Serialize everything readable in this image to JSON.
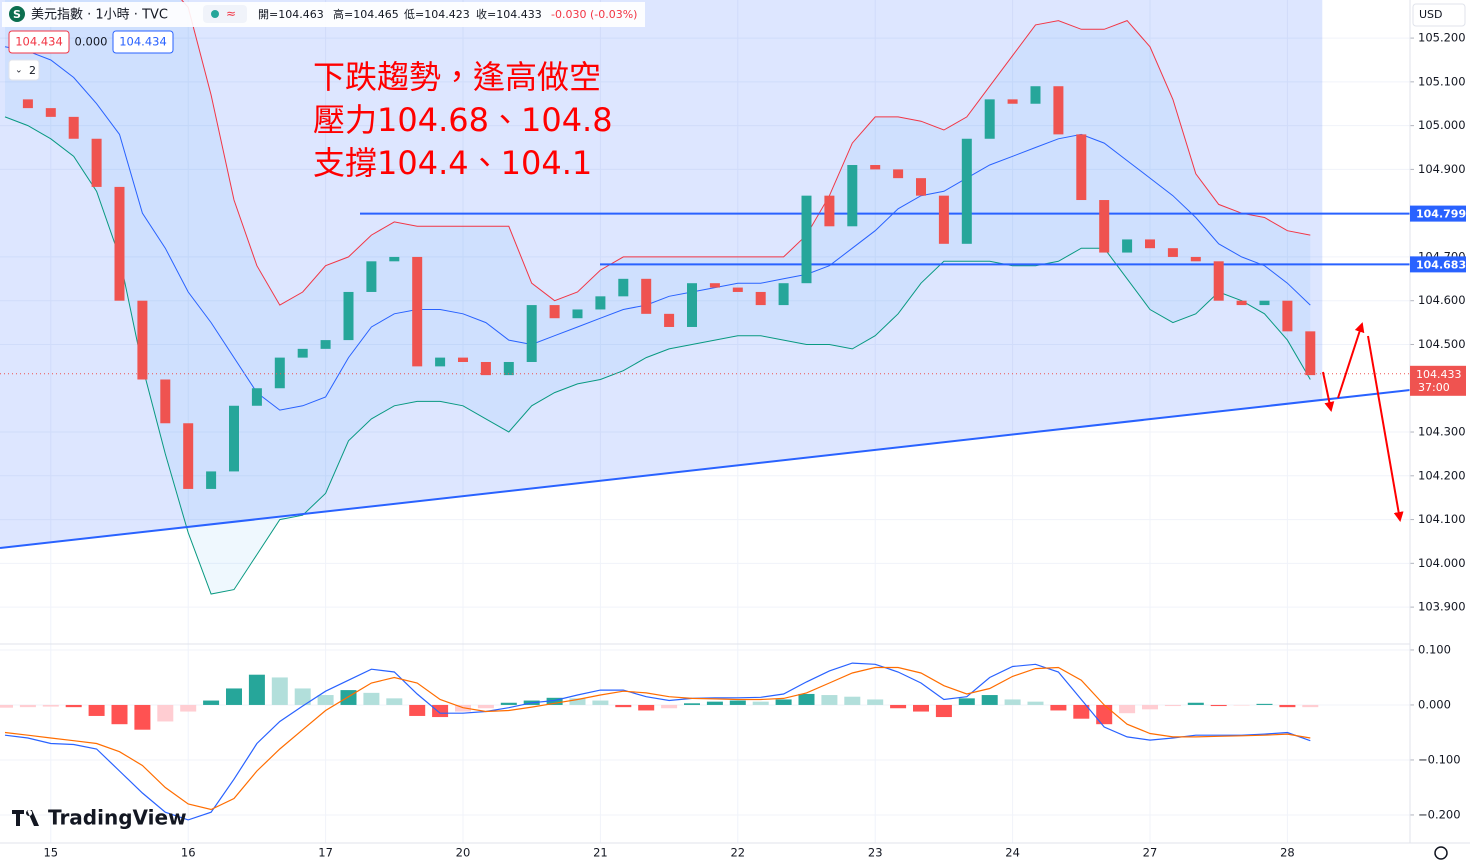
{
  "header": {
    "symbol": "美元指數 · 1小時 · TVC",
    "ohlc": [
      "開=104.463",
      "高=104.465",
      "低=104.423",
      "收=104.433"
    ],
    "change": "-0.030 (-0.03%)",
    "bid": "104.434",
    "spread": "0.000",
    "ask": "104.434",
    "indicator_count": 2,
    "currency": "USD",
    "brand": "TradingView"
  },
  "chart_data": [
    {
      "type": "candlestick",
      "annotations": [
        "下跌趨勢，逢高做空",
        "壓力104.68、104.8",
        "支撐104.4、104.1"
      ],
      "categories": [
        null,
        null,
        "15",
        null,
        null,
        null,
        null,
        null,
        "16",
        null,
        null,
        null,
        null,
        null,
        "17",
        null,
        null,
        null,
        null,
        null,
        "20",
        null,
        null,
        null,
        null,
        null,
        "21",
        null,
        null,
        null,
        null,
        null,
        "22",
        null,
        null,
        null,
        null,
        null,
        "23",
        null,
        null,
        null,
        null,
        null,
        "24",
        null,
        null,
        null,
        null,
        null,
        "27",
        null,
        null,
        null,
        null,
        null,
        "28",
        null
      ],
      "values": [
        105.06,
        105.04,
        105.02,
        104.97,
        104.86,
        104.6,
        104.42,
        104.32,
        104.17,
        104.21,
        104.36,
        104.4,
        104.47,
        104.49,
        104.51,
        104.62,
        104.69,
        104.7,
        104.45,
        104.47,
        104.46,
        104.43,
        104.46,
        104.59,
        104.56,
        104.58,
        104.61,
        104.65,
        104.57,
        104.54,
        104.64,
        104.63,
        104.62,
        104.59,
        104.64,
        104.84,
        104.77,
        104.91,
        104.9,
        104.88,
        104.84,
        104.73,
        104.97,
        105.06,
        105.05,
        105.09,
        104.98,
        104.83,
        104.71,
        104.74,
        104.72,
        104.7,
        104.69,
        104.6,
        104.59,
        104.6,
        104.53,
        104.43
      ],
      "colors": {
        "up": "#26a69a",
        "down": "#ef5350"
      },
      "bollinger": {
        "upper": [
          105.35,
          105.4,
          105.45,
          105.5,
          105.5,
          105.48,
          105.42,
          105.33,
          105.27,
          105.07,
          104.83,
          104.68,
          104.59,
          104.62,
          104.68,
          104.7,
          104.75,
          104.78,
          104.77,
          104.77,
          104.77,
          104.77,
          104.77,
          104.64,
          104.6,
          104.62,
          104.67,
          104.7,
          104.7,
          104.7,
          104.7,
          104.7,
          104.7,
          104.7,
          104.7,
          104.75,
          104.84,
          104.96,
          105.02,
          105.02,
          105.01,
          104.99,
          105.02,
          105.09,
          105.16,
          105.23,
          105.24,
          105.22,
          105.22,
          105.24,
          105.18,
          105.06,
          104.89,
          104.82,
          104.8,
          104.79,
          104.76,
          104.75
        ],
        "middle": [
          105.18,
          105.17,
          105.15,
          105.11,
          105.05,
          104.98,
          104.8,
          104.72,
          104.62,
          104.55,
          104.47,
          104.39,
          104.35,
          104.36,
          104.38,
          104.47,
          104.54,
          104.57,
          104.58,
          104.58,
          104.57,
          104.55,
          104.51,
          104.5,
          104.52,
          104.54,
          104.56,
          104.58,
          104.59,
          104.61,
          104.62,
          104.63,
          104.64,
          104.64,
          104.65,
          104.66,
          104.68,
          104.72,
          104.76,
          104.81,
          104.84,
          104.85,
          104.88,
          104.91,
          104.93,
          104.95,
          104.97,
          104.98,
          104.96,
          104.92,
          104.88,
          104.84,
          104.79,
          104.73,
          104.7,
          104.68,
          104.64,
          104.59
        ],
        "lower": [
          105.02,
          105.0,
          104.97,
          104.93,
          104.85,
          104.7,
          104.45,
          104.25,
          104.07,
          103.93,
          103.94,
          104.02,
          104.1,
          104.11,
          104.16,
          104.28,
          104.33,
          104.36,
          104.37,
          104.37,
          104.36,
          104.33,
          104.3,
          104.36,
          104.39,
          104.41,
          104.42,
          104.44,
          104.47,
          104.49,
          104.5,
          104.51,
          104.52,
          104.52,
          104.51,
          104.5,
          104.5,
          104.49,
          104.52,
          104.57,
          104.64,
          104.69,
          104.69,
          104.69,
          104.68,
          104.68,
          104.69,
          104.72,
          104.72,
          104.65,
          104.58,
          104.55,
          104.57,
          104.62,
          104.6,
          104.57,
          104.51,
          104.42
        ],
        "colors": [
          "#f23645",
          "#2962ff",
          "#089981"
        ]
      },
      "levels": [
        104.799,
        104.683
      ],
      "level_color": "#2962ff",
      "trendline": [
        104.035,
        104.396
      ],
      "last_price": 104.433,
      "countdown": "37:00",
      "ylim": [
        103.818,
        105.287
      ],
      "yticks": [
        {
          "value": 105.2,
          "label": "105.200"
        },
        {
          "value": 105.1,
          "label": "105.100"
        },
        {
          "value": 105.0,
          "label": "105.000"
        },
        {
          "value": 104.9,
          "label": "104.900"
        },
        {
          "value": 104.7,
          "label": "104.700"
        },
        {
          "value": 104.6,
          "label": "104.600"
        },
        {
          "value": 104.5,
          "label": "104.500"
        },
        {
          "value": 104.3,
          "label": "104.300"
        },
        {
          "value": 104.2,
          "label": "104.200"
        },
        {
          "value": 104.1,
          "label": "104.100"
        },
        {
          "value": 104.0,
          "label": "104.000"
        },
        {
          "value": 103.9,
          "label": "103.900"
        }
      ]
    },
    {
      "type": "macd",
      "values": [
        -0.005,
        -0.004,
        -0.003,
        -0.004,
        -0.02,
        -0.035,
        -0.045,
        -0.03,
        -0.012,
        0.008,
        0.03,
        0.055,
        0.05,
        0.03,
        0.018,
        0.027,
        0.022,
        0.012,
        -0.02,
        -0.022,
        -0.012,
        -0.006,
        0.004,
        0.008,
        0.013,
        0.012,
        0.008,
        -0.004,
        -0.01,
        -0.006,
        0.003,
        0.006,
        0.008,
        0.006,
        0.01,
        0.02,
        0.018,
        0.015,
        0.01,
        -0.006,
        -0.012,
        -0.022,
        0.012,
        0.018,
        0.01,
        0.006,
        -0.01,
        -0.025,
        -0.035,
        -0.015,
        -0.008,
        -0.002,
        0.004,
        -0.002,
        -0.001,
        0.002,
        -0.004,
        -0.004
      ],
      "colors": [
        "#26a69a",
        "#b2dfdb",
        "#ff5252",
        "#ffcdd2"
      ],
      "series": [
        {
          "color": "#2962ff",
          "values": [
            -0.055,
            -0.06,
            -0.07,
            -0.072,
            -0.08,
            -0.12,
            -0.16,
            -0.195,
            -0.209,
            -0.195,
            -0.135,
            -0.07,
            -0.03,
            -0.002,
            0.025,
            0.045,
            0.065,
            0.06,
            0.02,
            -0.015,
            -0.015,
            -0.012,
            -0.005,
            0.004,
            0.008,
            0.018,
            0.027,
            0.027,
            0.015,
            0.008,
            0.012,
            0.013,
            0.013,
            0.014,
            0.02,
            0.042,
            0.062,
            0.076,
            0.074,
            0.06,
            0.04,
            0.01,
            0.015,
            0.05,
            0.07,
            0.074,
            0.06,
            0.01,
            -0.04,
            -0.058,
            -0.064,
            -0.06,
            -0.055,
            -0.055,
            -0.055,
            -0.053,
            -0.05,
            -0.065
          ]
        },
        {
          "color": "#ff6d00",
          "values": [
            -0.05,
            -0.055,
            -0.06,
            -0.065,
            -0.07,
            -0.085,
            -0.11,
            -0.15,
            -0.18,
            -0.19,
            -0.17,
            -0.12,
            -0.08,
            -0.045,
            -0.01,
            0.015,
            0.04,
            0.05,
            0.04,
            0.01,
            -0.005,
            -0.012,
            -0.01,
            -0.004,
            0.003,
            0.01,
            0.018,
            0.025,
            0.022,
            0.015,
            0.012,
            0.011,
            0.01,
            0.01,
            0.012,
            0.022,
            0.04,
            0.058,
            0.068,
            0.068,
            0.058,
            0.035,
            0.02,
            0.03,
            0.052,
            0.066,
            0.068,
            0.045,
            0.0,
            -0.035,
            -0.052,
            -0.058,
            -0.058,
            -0.057,
            -0.056,
            -0.055,
            -0.053,
            -0.06
          ]
        }
      ],
      "ylim": [
        -0.251,
        0.109
      ],
      "yticks": [
        {
          "value": 0.1,
          "label": "0.100"
        },
        {
          "value": 0,
          "label": "0.000"
        },
        {
          "value": -0.1,
          "label": "−0.100"
        },
        {
          "value": -0.2,
          "label": "−0.200"
        }
      ]
    }
  ]
}
